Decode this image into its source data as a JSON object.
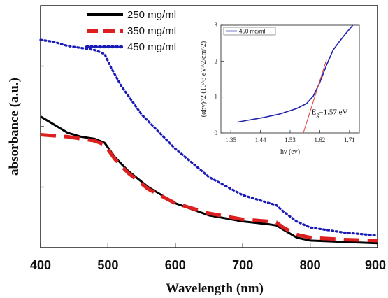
{
  "chart_data": [
    {
      "type": "line",
      "xlabel": "Wavelength (nm)",
      "ylabel": "absorbance (a.u.)",
      "xlim": [
        400,
        900
      ],
      "ylim": [
        0,
        1.2
      ],
      "xticks": [
        "400",
        "500",
        "600",
        "700",
        "800",
        "900"
      ],
      "legend": "top-left",
      "series": [
        {
          "name": "250 mg/ml",
          "color": "#000000",
          "style": "solid",
          "x": [
            400,
            420,
            440,
            460,
            480,
            495,
            510,
            530,
            560,
            600,
            650,
            700,
            740,
            750,
            760,
            780,
            800,
            850,
            900
          ],
          "y": [
            0.65,
            0.61,
            0.57,
            0.55,
            0.54,
            0.52,
            0.45,
            0.38,
            0.3,
            0.22,
            0.16,
            0.13,
            0.115,
            0.11,
            0.09,
            0.05,
            0.035,
            0.028,
            0.022
          ]
        },
        {
          "name": "350 mg/ml",
          "color": "#dd1f1f",
          "style": "dashed",
          "x": [
            400,
            420,
            440,
            460,
            480,
            495,
            510,
            530,
            560,
            600,
            650,
            700,
            740,
            750,
            760,
            780,
            800,
            850,
            900
          ],
          "y": [
            0.56,
            0.555,
            0.55,
            0.54,
            0.53,
            0.51,
            0.44,
            0.37,
            0.29,
            0.22,
            0.17,
            0.14,
            0.13,
            0.125,
            0.1,
            0.065,
            0.05,
            0.04,
            0.035
          ]
        },
        {
          "name": "450 mg/ml",
          "color": "#1a1ab8",
          "style": "dotted",
          "x": [
            400,
            420,
            440,
            460,
            480,
            495,
            505,
            520,
            550,
            600,
            650,
            700,
            740,
            750,
            760,
            780,
            800,
            850,
            900
          ],
          "y": [
            1.03,
            1.02,
            1.0,
            0.99,
            0.98,
            0.96,
            0.89,
            0.8,
            0.66,
            0.49,
            0.35,
            0.26,
            0.22,
            0.21,
            0.18,
            0.13,
            0.1,
            0.075,
            0.06
          ]
        }
      ]
    },
    {
      "type": "line",
      "inset": true,
      "xlabel": "hν (ev)",
      "ylabel": "(αhν)^2 (10^8 eV^2/cm^2)",
      "xlim": [
        1.32,
        1.74
      ],
      "ylim": [
        0,
        3
      ],
      "xticks": [
        "1.35",
        "1.44",
        "1.53",
        "1.62",
        "1.71"
      ],
      "yticks": [
        "0",
        "1",
        "2",
        "3"
      ],
      "legend": "top-left",
      "annotation": {
        "label": "E",
        "subscript": "g",
        "value": "=1.57 eV"
      },
      "series": [
        {
          "name": "450 mg/ml",
          "color": "#2222aa",
          "x": [
            1.37,
            1.4,
            1.45,
            1.5,
            1.55,
            1.58,
            1.6,
            1.62,
            1.64,
            1.66,
            1.68,
            1.7,
            1.72
          ],
          "y": [
            0.3,
            0.35,
            0.43,
            0.53,
            0.68,
            0.82,
            1.02,
            1.4,
            1.88,
            2.3,
            2.55,
            2.78,
            3.0
          ]
        },
        {
          "name": "",
          "color": "#e04848",
          "x": [
            1.57,
            1.64
          ],
          "y": [
            0,
            2.03
          ]
        }
      ]
    }
  ]
}
